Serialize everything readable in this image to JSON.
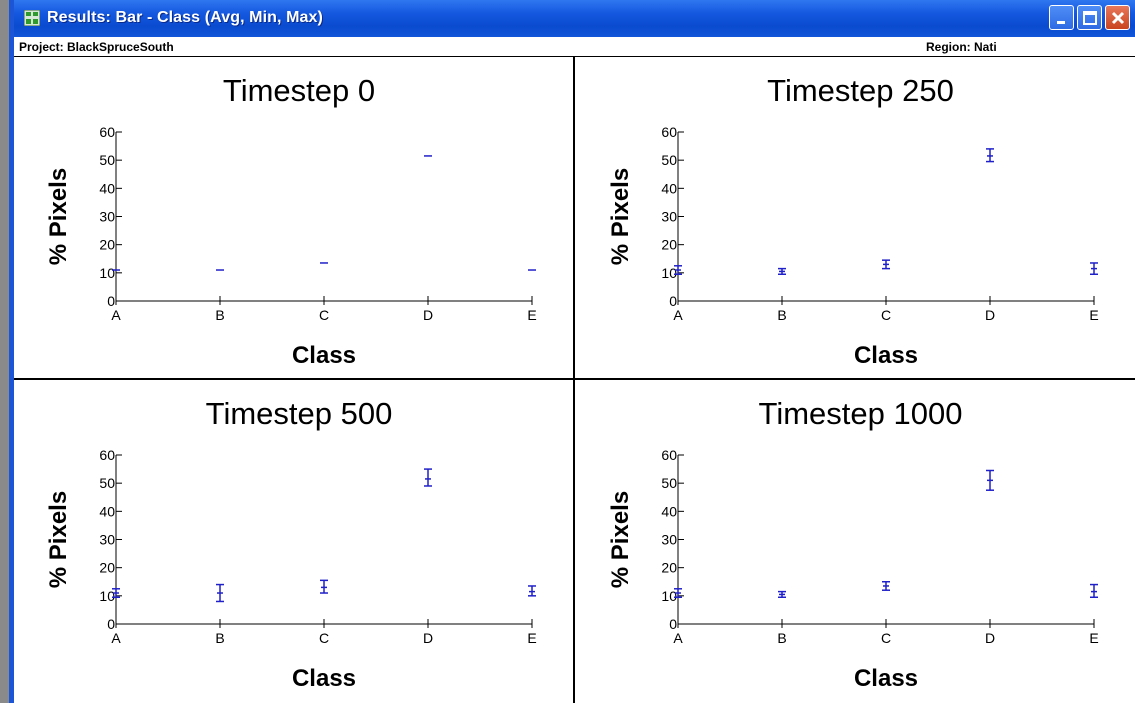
{
  "window": {
    "title": "Results: Bar - Class (Avg, Min, Max)",
    "accent": "#0a4bd0",
    "controls": {
      "minimize": "minimize-icon",
      "maximize": "maximize-icon",
      "close": "close-icon"
    }
  },
  "infobar": {
    "project": "Project: BlackSpruceSouth",
    "region": "Region: Nati"
  },
  "chart_data": [
    {
      "type": "range",
      "title": "Timestep 0",
      "xlabel": "Class",
      "ylabel": "% Pixels",
      "categories": [
        "A",
        "B",
        "C",
        "D",
        "E"
      ],
      "ylim": [
        0,
        60
      ],
      "yticks": [
        0,
        10,
        20,
        30,
        40,
        50,
        60
      ],
      "series": [
        {
          "name": "Avg",
          "values": [
            11,
            11,
            13.5,
            51.5,
            11
          ]
        },
        {
          "name": "Min",
          "values": [
            11,
            11,
            13.5,
            51.5,
            11
          ]
        },
        {
          "name": "Max",
          "values": [
            11,
            11,
            13.5,
            51.5,
            11
          ]
        }
      ],
      "color": "#2020c8"
    },
    {
      "type": "range",
      "title": "Timestep 250",
      "xlabel": "Class",
      "ylabel": "% Pixels",
      "categories": [
        "A",
        "B",
        "C",
        "D",
        "E"
      ],
      "ylim": [
        0,
        60
      ],
      "yticks": [
        0,
        10,
        20,
        30,
        40,
        50,
        60
      ],
      "series": [
        {
          "name": "Avg",
          "values": [
            11,
            10.5,
            13,
            51.5,
            11.5
          ]
        },
        {
          "name": "Min",
          "values": [
            9.5,
            9.5,
            11.5,
            49.5,
            9.5
          ]
        },
        {
          "name": "Max",
          "values": [
            12.5,
            11.5,
            14.5,
            54,
            13.5
          ]
        }
      ],
      "color": "#2020c8"
    },
    {
      "type": "range",
      "title": "Timestep 500",
      "xlabel": "Class",
      "ylabel": "% Pixels",
      "categories": [
        "A",
        "B",
        "C",
        "D",
        "E"
      ],
      "ylim": [
        0,
        60
      ],
      "yticks": [
        0,
        10,
        20,
        30,
        40,
        50,
        60
      ],
      "series": [
        {
          "name": "Avg",
          "values": [
            11,
            11,
            13,
            51.5,
            11.5
          ]
        },
        {
          "name": "Min",
          "values": [
            9.5,
            8,
            11,
            49,
            10
          ]
        },
        {
          "name": "Max",
          "values": [
            12.5,
            14,
            15.5,
            55,
            13.5
          ]
        }
      ],
      "color": "#2020c8"
    },
    {
      "type": "range",
      "title": "Timestep 1000",
      "xlabel": "Class",
      "ylabel": "% Pixels",
      "categories": [
        "A",
        "B",
        "C",
        "D",
        "E"
      ],
      "ylim": [
        0,
        60
      ],
      "yticks": [
        0,
        10,
        20,
        30,
        40,
        50,
        60
      ],
      "series": [
        {
          "name": "Avg",
          "values": [
            11,
            10.5,
            13.5,
            51,
            11.5
          ]
        },
        {
          "name": "Min",
          "values": [
            9.5,
            9.5,
            12,
            47.5,
            9.5
          ]
        },
        {
          "name": "Max",
          "values": [
            12.5,
            11.5,
            15,
            54.5,
            14
          ]
        }
      ],
      "color": "#2020c8"
    }
  ]
}
